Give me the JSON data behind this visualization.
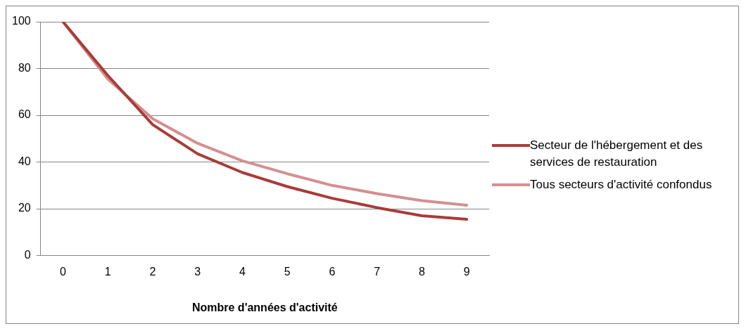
{
  "chart_data": {
    "type": "line",
    "xlabel": "Nombre d'années d'activité",
    "categories": [
      "0",
      "1",
      "2",
      "3",
      "4",
      "5",
      "6",
      "7",
      "8",
      "9"
    ],
    "series": [
      {
        "name": "Secteur de l'hébergement et des services de restauration",
        "color": "#a83c3a",
        "values": [
          100,
          77,
          56,
          43.5,
          35.5,
          29.5,
          24.5,
          20.5,
          17,
          15.5
        ]
      },
      {
        "name": "Tous secteurs d'activité confondus",
        "color": "#d48f8f",
        "values": [
          100,
          75.5,
          58.5,
          48,
          40.5,
          35,
          30,
          26.5,
          23.5,
          21.5
        ]
      }
    ],
    "ylim": [
      0,
      100
    ],
    "yticks": [
      0,
      20,
      40,
      60,
      80,
      100
    ],
    "grid": "y",
    "legend": "right",
    "marker": "none",
    "line_style": "solid"
  }
}
